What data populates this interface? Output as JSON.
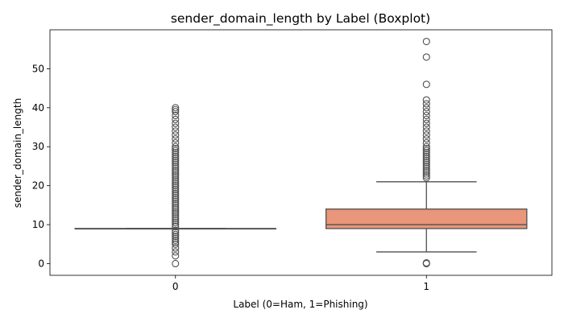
{
  "chart_data": {
    "type": "boxplot",
    "title": "sender_domain_length by Label (Boxplot)",
    "xlabel": "Label (0=Ham, 1=Phishing)",
    "ylabel": "sender_domain_length",
    "categories": [
      "0",
      "1"
    ],
    "ylim": [
      -3,
      60
    ],
    "yticks": [
      0,
      10,
      20,
      30,
      40,
      50
    ],
    "grid": false,
    "boxes": [
      {
        "category": "0",
        "q1": 9,
        "median": 9,
        "q3": 9,
        "whisker_low": 9,
        "whisker_high": 9,
        "color": "#8da0cb",
        "outliers": [
          0,
          2,
          3,
          4,
          5,
          5.5,
          6,
          6.5,
          7,
          7.5,
          8,
          8.5,
          9.5,
          10,
          10.5,
          11,
          11.5,
          12,
          12.5,
          13,
          13.5,
          14,
          14.5,
          15,
          15.5,
          16,
          16.5,
          17,
          17.5,
          18,
          18.5,
          19,
          19.5,
          20,
          20.5,
          21,
          21.5,
          22,
          22.5,
          23,
          23.5,
          24,
          24.5,
          25,
          25.5,
          26,
          26.5,
          27,
          27.5,
          28,
          28.5,
          29,
          29.5,
          30,
          31,
          32,
          33,
          34,
          35,
          36,
          37,
          38,
          39,
          39.5,
          40
        ]
      },
      {
        "category": "1",
        "q1": 9,
        "median": 10,
        "q3": 14,
        "whisker_low": 3,
        "whisker_high": 21,
        "color": "#e9967a",
        "outliers": [
          0,
          0.2,
          22,
          22.5,
          23,
          23.5,
          24,
          24.5,
          25,
          25.5,
          26,
          26.5,
          27,
          27.5,
          28,
          28.5,
          29,
          29.5,
          30,
          31,
          32,
          33,
          34,
          35,
          36,
          37,
          38,
          39,
          40,
          41,
          42,
          46,
          53,
          57
        ]
      }
    ]
  }
}
